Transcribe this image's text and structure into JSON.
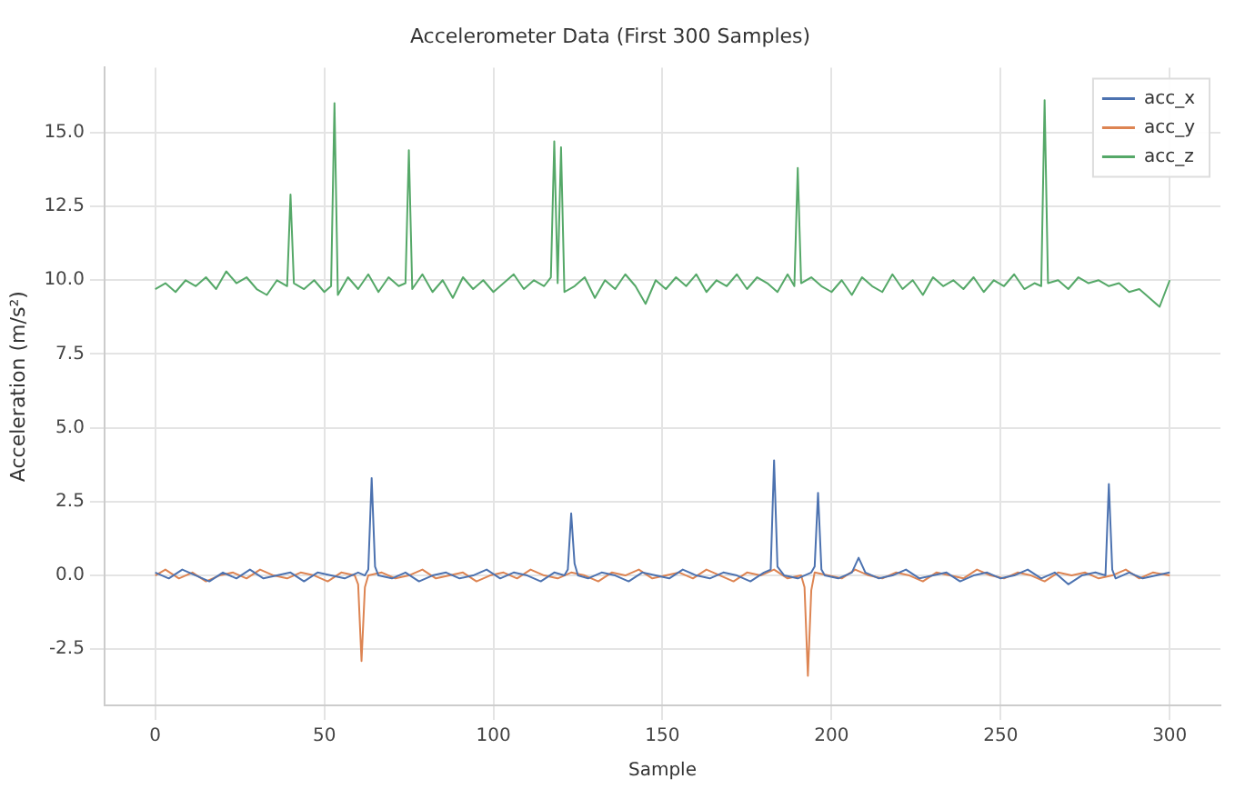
{
  "chart_data": {
    "type": "line",
    "title": "Accelerometer Data (First 300 Samples)",
    "xlabel": "Sample",
    "ylabel": "Acceleration (m/s²)",
    "xlim": [
      -15,
      315
    ],
    "ylim": [
      -4.4,
      17.2
    ],
    "xticks": [
      0,
      50,
      100,
      150,
      200,
      250,
      300
    ],
    "yticks": [
      {
        "value": -2.5,
        "label": "-2.5"
      },
      {
        "value": 0,
        "label": "0.0"
      },
      {
        "value": 2.5,
        "label": "2.5"
      },
      {
        "value": 5,
        "label": "5.0"
      },
      {
        "value": 7.5,
        "label": "7.5"
      },
      {
        "value": 10,
        "label": "10.0"
      },
      {
        "value": 12.5,
        "label": "12.5"
      },
      {
        "value": 15,
        "label": "15.0"
      }
    ],
    "grid": true,
    "legend": "top right",
    "marker": "none",
    "line_style": "solid",
    "series": [
      {
        "name": "acc_x",
        "color": "#4c72b0",
        "x": [
          0,
          4,
          8,
          12,
          16,
          20,
          24,
          28,
          32,
          36,
          40,
          44,
          48,
          52,
          56,
          60,
          62,
          63,
          64,
          65,
          66,
          70,
          74,
          78,
          82,
          86,
          90,
          94,
          98,
          102,
          106,
          110,
          114,
          118,
          121,
          122,
          123,
          124,
          125,
          128,
          132,
          136,
          140,
          144,
          148,
          152,
          156,
          160,
          164,
          168,
          172,
          176,
          180,
          182,
          183,
          184,
          186,
          190,
          194,
          195,
          196,
          197,
          198,
          202,
          206,
          208,
          210,
          214,
          218,
          222,
          226,
          230,
          234,
          238,
          242,
          246,
          250,
          254,
          258,
          262,
          266,
          270,
          274,
          278,
          281,
          282,
          283,
          284,
          288,
          292,
          296,
          300
        ],
        "values": [
          0.1,
          -0.1,
          0.2,
          0.0,
          -0.2,
          0.1,
          -0.1,
          0.2,
          -0.1,
          0.0,
          0.1,
          -0.2,
          0.1,
          0.0,
          -0.1,
          0.1,
          0.0,
          0.2,
          3.3,
          0.3,
          0.0,
          -0.1,
          0.1,
          -0.2,
          0.0,
          0.1,
          -0.1,
          0.0,
          0.2,
          -0.1,
          0.1,
          0.0,
          -0.2,
          0.1,
          0.0,
          0.2,
          2.1,
          0.4,
          0.0,
          -0.1,
          0.1,
          0.0,
          -0.2,
          0.1,
          0.0,
          -0.1,
          0.2,
          0.0,
          -0.1,
          0.1,
          0.0,
          -0.2,
          0.1,
          0.2,
          3.9,
          0.3,
          0.0,
          -0.1,
          0.1,
          0.3,
          2.8,
          0.2,
          0.0,
          -0.1,
          0.1,
          0.6,
          0.1,
          -0.1,
          0.0,
          0.2,
          -0.1,
          0.0,
          0.1,
          -0.2,
          0.0,
          0.1,
          -0.1,
          0.0,
          0.2,
          -0.1,
          0.1,
          -0.3,
          0.0,
          0.1,
          0.0,
          3.1,
          0.2,
          -0.1,
          0.1,
          -0.1,
          0.0,
          0.1
        ]
      },
      {
        "name": "acc_y",
        "color": "#dd8452",
        "x": [
          0,
          3,
          7,
          11,
          15,
          19,
          23,
          27,
          31,
          35,
          39,
          43,
          47,
          51,
          55,
          59,
          60,
          61,
          62,
          63,
          67,
          71,
          75,
          79,
          83,
          87,
          91,
          95,
          99,
          103,
          107,
          111,
          115,
          119,
          123,
          127,
          131,
          135,
          139,
          143,
          147,
          151,
          155,
          159,
          163,
          167,
          171,
          175,
          179,
          183,
          187,
          191,
          192,
          193,
          194,
          195,
          199,
          203,
          207,
          211,
          215,
          219,
          223,
          227,
          231,
          235,
          239,
          243,
          247,
          251,
          255,
          259,
          263,
          267,
          271,
          275,
          279,
          283,
          287,
          291,
          295,
          300
        ],
        "values": [
          0.0,
          0.2,
          -0.1,
          0.1,
          -0.2,
          0.0,
          0.1,
          -0.1,
          0.2,
          0.0,
          -0.1,
          0.1,
          0.0,
          -0.2,
          0.1,
          0.0,
          -0.3,
          -2.9,
          -0.4,
          0.0,
          0.1,
          -0.1,
          0.0,
          0.2,
          -0.1,
          0.0,
          0.1,
          -0.2,
          0.0,
          0.1,
          -0.1,
          0.2,
          0.0,
          -0.1,
          0.1,
          0.0,
          -0.2,
          0.1,
          0.0,
          0.2,
          -0.1,
          0.0,
          0.1,
          -0.1,
          0.2,
          0.0,
          -0.2,
          0.1,
          0.0,
          0.2,
          -0.1,
          0.0,
          -0.4,
          -3.4,
          -0.5,
          0.1,
          0.0,
          -0.1,
          0.2,
          0.0,
          -0.1,
          0.1,
          0.0,
          -0.2,
          0.1,
          0.0,
          -0.1,
          0.2,
          0.0,
          -0.1,
          0.1,
          0.0,
          -0.2,
          0.1,
          0.0,
          0.1,
          -0.1,
          0.0,
          0.2,
          -0.1,
          0.1,
          0.0
        ]
      },
      {
        "name": "acc_z",
        "color": "#55a868",
        "x": [
          0,
          3,
          6,
          9,
          12,
          15,
          18,
          21,
          24,
          27,
          30,
          33,
          36,
          39,
          40,
          41,
          44,
          47,
          50,
          52,
          53,
          54,
          57,
          60,
          63,
          66,
          69,
          72,
          74,
          75,
          76,
          79,
          82,
          85,
          88,
          91,
          94,
          97,
          100,
          103,
          106,
          109,
          112,
          115,
          117,
          118,
          119,
          120,
          121,
          124,
          127,
          130,
          133,
          136,
          139,
          142,
          145,
          148,
          151,
          154,
          157,
          160,
          163,
          166,
          169,
          172,
          175,
          178,
          181,
          184,
          187,
          189,
          190,
          191,
          194,
          197,
          200,
          203,
          206,
          209,
          212,
          215,
          218,
          221,
          224,
          227,
          230,
          233,
          236,
          239,
          242,
          245,
          248,
          251,
          254,
          257,
          260,
          262,
          263,
          264,
          267,
          270,
          273,
          276,
          279,
          282,
          285,
          288,
          291,
          294,
          297,
          300
        ],
        "values": [
          9.7,
          9.9,
          9.6,
          10.0,
          9.8,
          10.1,
          9.7,
          10.3,
          9.9,
          10.1,
          9.7,
          9.5,
          10.0,
          9.8,
          12.9,
          9.9,
          9.7,
          10.0,
          9.6,
          9.8,
          16.0,
          9.5,
          10.1,
          9.7,
          10.2,
          9.6,
          10.1,
          9.8,
          9.9,
          14.4,
          9.7,
          10.2,
          9.6,
          10.0,
          9.4,
          10.1,
          9.7,
          10.0,
          9.6,
          9.9,
          10.2,
          9.7,
          10.0,
          9.8,
          10.1,
          14.7,
          9.9,
          14.5,
          9.6,
          9.8,
          10.1,
          9.4,
          10.0,
          9.7,
          10.2,
          9.8,
          9.2,
          10.0,
          9.7,
          10.1,
          9.8,
          10.2,
          9.6,
          10.0,
          9.8,
          10.2,
          9.7,
          10.1,
          9.9,
          9.6,
          10.2,
          9.8,
          13.8,
          9.9,
          10.1,
          9.8,
          9.6,
          10.0,
          9.5,
          10.1,
          9.8,
          9.6,
          10.2,
          9.7,
          10.0,
          9.5,
          10.1,
          9.8,
          10.0,
          9.7,
          10.1,
          9.6,
          10.0,
          9.8,
          10.2,
          9.7,
          9.9,
          9.8,
          16.1,
          9.9,
          10.0,
          9.7,
          10.1,
          9.9,
          10.0,
          9.8,
          9.9,
          9.6,
          9.7,
          9.4,
          9.1,
          10.0
        ]
      }
    ]
  }
}
